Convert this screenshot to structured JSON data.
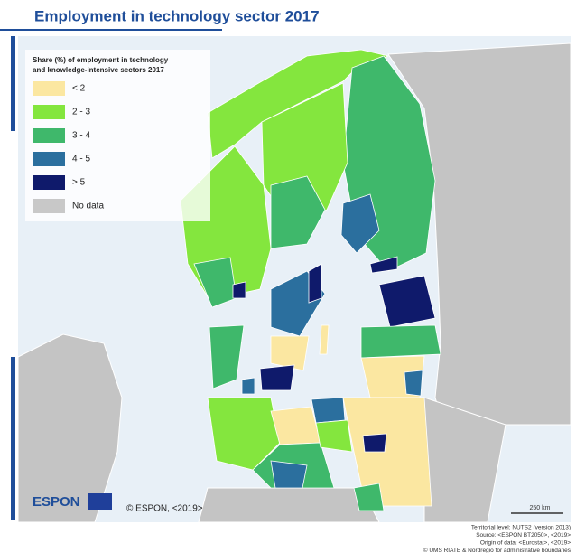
{
  "header": {
    "title": "Employment in technology sector 2017"
  },
  "legend": {
    "title": [
      "Share (%) of employment in technology",
      "and knowledge-intensive sectors 2017"
    ],
    "items": [
      {
        "label": "< 2",
        "color": "#fbe7a1"
      },
      {
        "label": "2 - 3",
        "color": "#84e63e"
      },
      {
        "label": "3 - 4",
        "color": "#3fb86b"
      },
      {
        "label": "4 - 5",
        "color": "#2b6f9e"
      },
      {
        "label": "> 5",
        "color": "#0f1a6b"
      },
      {
        "label": "No data",
        "color": "#c8c8c8"
      }
    ]
  },
  "logo": "ESPON",
  "credit": "© ESPON, <2019>",
  "scale": "250 km",
  "footer": [
    "Territorial level: NUTS2 (version 2013)",
    "Source: <ESPON BT2050>, <2019>",
    "Origin of data: <Eurostat>, <2019>",
    "© UMS RIATE & Nordregio for administrative boundaries"
  ]
}
